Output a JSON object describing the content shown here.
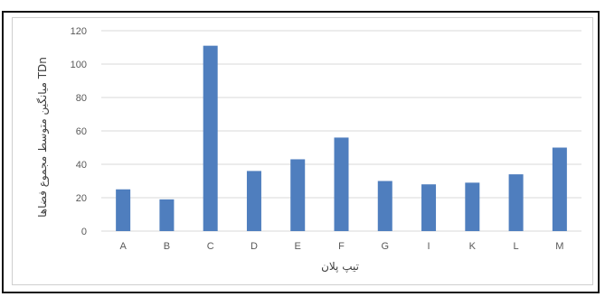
{
  "chart_data": {
    "type": "bar",
    "categories": [
      "A",
      "B",
      "C",
      "D",
      "E",
      "F",
      "G",
      "I",
      "K",
      "L",
      "M"
    ],
    "values": [
      25,
      19,
      111,
      36,
      43,
      56,
      30,
      28,
      29,
      34,
      50
    ],
    "xlabel": "تیپ پلان",
    "ylabel": "میانگین متوسط مجموع فضاها TDn",
    "ylim": [
      0,
      120
    ],
    "yticks": [
      0,
      20,
      40,
      60,
      80,
      100,
      120
    ],
    "grid": true,
    "legend": "none",
    "colors": {
      "bar": "#4F7EBE",
      "grid": "#d9d9d9",
      "text": "#595959"
    }
  }
}
